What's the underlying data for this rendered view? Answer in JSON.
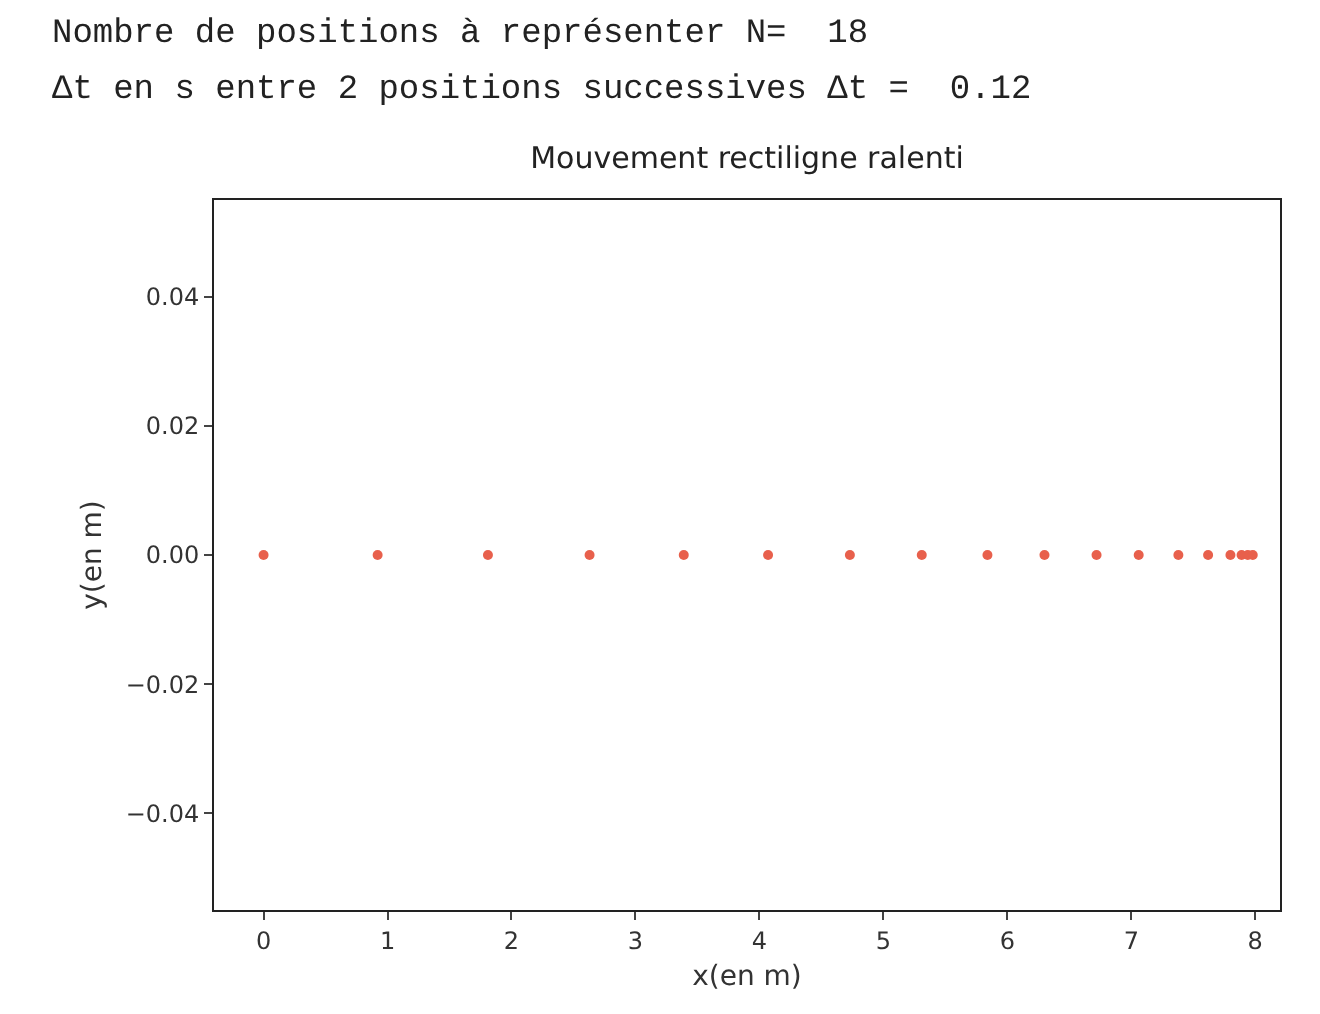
{
  "chart_data": {
    "type": "scatter",
    "title": "Mouvement rectiligne ralenti",
    "annotations": [
      "Nombre de positions à représenter N=  18",
      "Δt en s entre 2 positions successives Δt =  0.12"
    ],
    "xlabel": "x(en m)",
    "ylabel": "y(en m)",
    "x": [
      0,
      0.92,
      1.81,
      2.63,
      3.39,
      4.07,
      4.73,
      5.31,
      5.84,
      6.3,
      6.72,
      7.06,
      7.38,
      7.62,
      7.8,
      7.89,
      7.94,
      7.98
    ],
    "series": [
      {
        "color": "#e8604c",
        "values": [
          0,
          0,
          0,
          0,
          0,
          0,
          0,
          0,
          0,
          0,
          0,
          0,
          0,
          0,
          0,
          0,
          0,
          0
        ]
      }
    ],
    "xlim": [
      -0.4,
      8.2
    ],
    "xticks": [
      0,
      1,
      2,
      3,
      4,
      5,
      6,
      7,
      8
    ],
    "ylim": [
      -0.055,
      0.055
    ],
    "yticks": [
      {
        "value": -0.04,
        "label": "−0.04"
      },
      {
        "value": -0.02,
        "label": "−0.02"
      },
      {
        "value": 0,
        "label": "0.00"
      },
      {
        "value": 0.02,
        "label": "0.02"
      },
      {
        "value": 0.04,
        "label": "0.04"
      }
    ],
    "grid": false,
    "marker": "circle"
  }
}
